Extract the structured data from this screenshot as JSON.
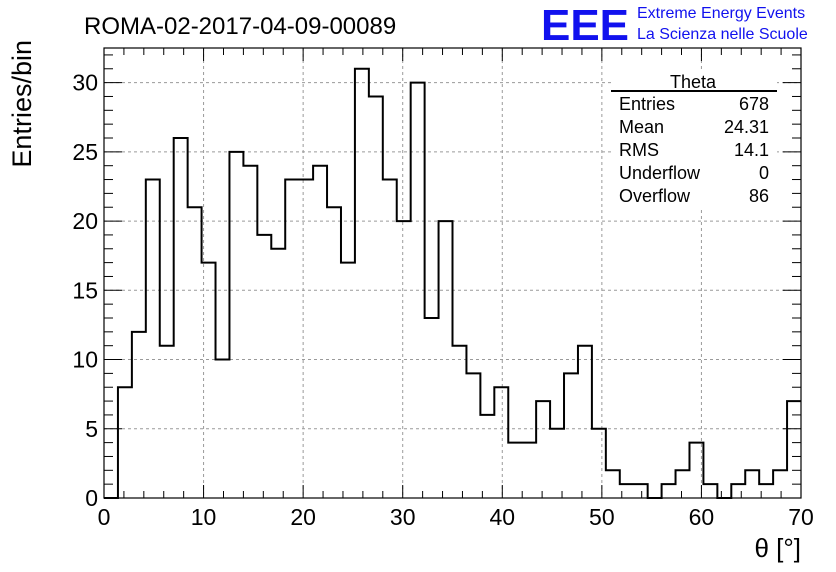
{
  "chart_data": {
    "type": "bar",
    "title": "ROMA-02-2017-04-09-00089",
    "xlabel": "θ [°]",
    "ylabel": "Entries/bin",
    "xlim": [
      0,
      70
    ],
    "ylim": [
      0,
      32.5
    ],
    "bin_width": 1.4,
    "bin_start": 0,
    "x_ticks": [
      0,
      10,
      20,
      30,
      40,
      50,
      60,
      70
    ],
    "y_ticks": [
      0,
      5,
      10,
      15,
      20,
      25,
      30
    ],
    "grid": true,
    "values": [
      0,
      8,
      12,
      23,
      11,
      26,
      21,
      17,
      10,
      25,
      24,
      19,
      18,
      23,
      23,
      24,
      21,
      17,
      31,
      29,
      23,
      20,
      30,
      13,
      20,
      11,
      9,
      6,
      8,
      4,
      4,
      7,
      5,
      9,
      11,
      5,
      2,
      1,
      1,
      0,
      1,
      2,
      4,
      1,
      0,
      1,
      2,
      1,
      2,
      7
    ],
    "stats": {
      "name": "Theta",
      "rows": [
        {
          "label": "Entries",
          "value": "678"
        },
        {
          "label": "Mean",
          "value": "24.31"
        },
        {
          "label": "RMS",
          "value": "14.1"
        },
        {
          "label": "Underflow",
          "value": "0"
        },
        {
          "label": "Overflow",
          "value": "86"
        }
      ]
    }
  },
  "logo": {
    "mark": "EEE",
    "line1": "Extreme Energy Events",
    "line2": "La Scienza nelle Scuole",
    "color": "#1111ee"
  }
}
